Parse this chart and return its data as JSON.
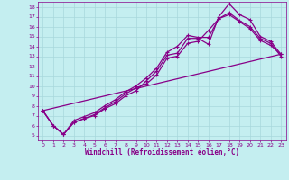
{
  "xlabel": "Windchill (Refroidissement éolien,°C)",
  "bg_color": "#c4eef0",
  "line_color": "#880088",
  "grid_color": "#a8d8dc",
  "xlim": [
    -0.5,
    23.5
  ],
  "ylim": [
    4.5,
    18.5
  ],
  "xticks": [
    0,
    1,
    2,
    3,
    4,
    5,
    6,
    7,
    8,
    9,
    10,
    11,
    12,
    13,
    14,
    15,
    16,
    17,
    18,
    19,
    20,
    21,
    22,
    23
  ],
  "yticks": [
    5,
    6,
    7,
    8,
    9,
    10,
    11,
    12,
    13,
    14,
    15,
    16,
    17,
    18
  ],
  "line1_x": [
    0,
    1,
    2,
    3,
    4,
    5,
    6,
    7,
    8,
    9,
    10,
    11,
    12,
    13,
    14,
    15,
    16,
    17,
    18,
    19,
    20,
    21,
    22,
    23
  ],
  "line1_y": [
    7.5,
    6.0,
    5.1,
    6.3,
    6.7,
    7.0,
    7.7,
    8.2,
    9.0,
    9.5,
    10.5,
    11.5,
    13.1,
    13.3,
    14.8,
    14.8,
    14.2,
    17.0,
    18.3,
    17.2,
    16.7,
    15.0,
    14.5,
    13.2
  ],
  "line2_x": [
    0,
    1,
    2,
    3,
    4,
    5,
    6,
    7,
    8,
    9,
    10,
    11,
    12,
    13,
    14,
    15,
    16,
    17,
    18,
    19,
    20,
    21,
    22,
    23
  ],
  "line2_y": [
    7.5,
    6.0,
    5.1,
    6.5,
    6.9,
    7.3,
    8.0,
    8.6,
    9.4,
    10.0,
    10.8,
    11.8,
    13.4,
    14.0,
    15.1,
    14.9,
    14.9,
    16.8,
    17.4,
    16.6,
    16.0,
    14.8,
    14.3,
    13.0
  ],
  "line3_x": [
    0,
    1,
    2,
    3,
    4,
    5,
    6,
    7,
    8,
    9,
    10,
    11,
    12,
    13,
    14,
    15,
    16,
    17,
    18,
    19,
    20,
    21,
    22,
    23
  ],
  "line3_y": [
    7.5,
    6.0,
    5.1,
    6.3,
    6.7,
    7.1,
    7.8,
    8.4,
    9.2,
    9.8,
    10.2,
    11.1,
    12.8,
    13.0,
    14.3,
    14.5,
    15.6,
    16.8,
    17.2,
    16.5,
    15.8,
    14.6,
    14.1,
    13.2
  ],
  "line4_x": [
    0,
    23
  ],
  "line4_y": [
    7.5,
    13.2
  ]
}
